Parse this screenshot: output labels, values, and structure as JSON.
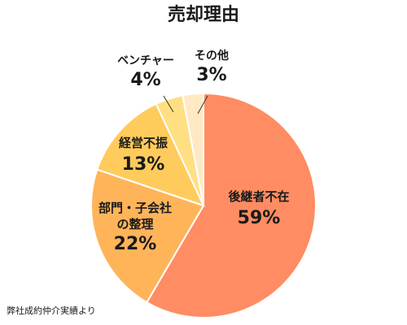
{
  "chart_data": {
    "type": "pie",
    "title": "売却理由",
    "unit": "%",
    "slices": [
      {
        "label": "後継者不在",
        "label_lines": [
          "後継者不在"
        ],
        "value": 59,
        "display": "59%",
        "color": "#FF8C62"
      },
      {
        "label": "部門・子会社の整理",
        "label_lines": [
          "部門・子会社",
          "の整理"
        ],
        "value": 22,
        "display": "22%",
        "color": "#FFB45A"
      },
      {
        "label": "経営不振",
        "label_lines": [
          "経営不振"
        ],
        "value": 13,
        "display": "13%",
        "color": "#FFCB5C"
      },
      {
        "label": "ベンチャー",
        "label_lines": [
          "ベンチャー"
        ],
        "value": 4,
        "display": "4%",
        "color": "#FFDF82"
      },
      {
        "label": "その他",
        "label_lines": [
          "その他"
        ],
        "value": 3,
        "display": "3%",
        "color": "#FFE9C4"
      }
    ],
    "legend": "none",
    "grid": false
  },
  "footnote": "弊社成約仲介実績より"
}
